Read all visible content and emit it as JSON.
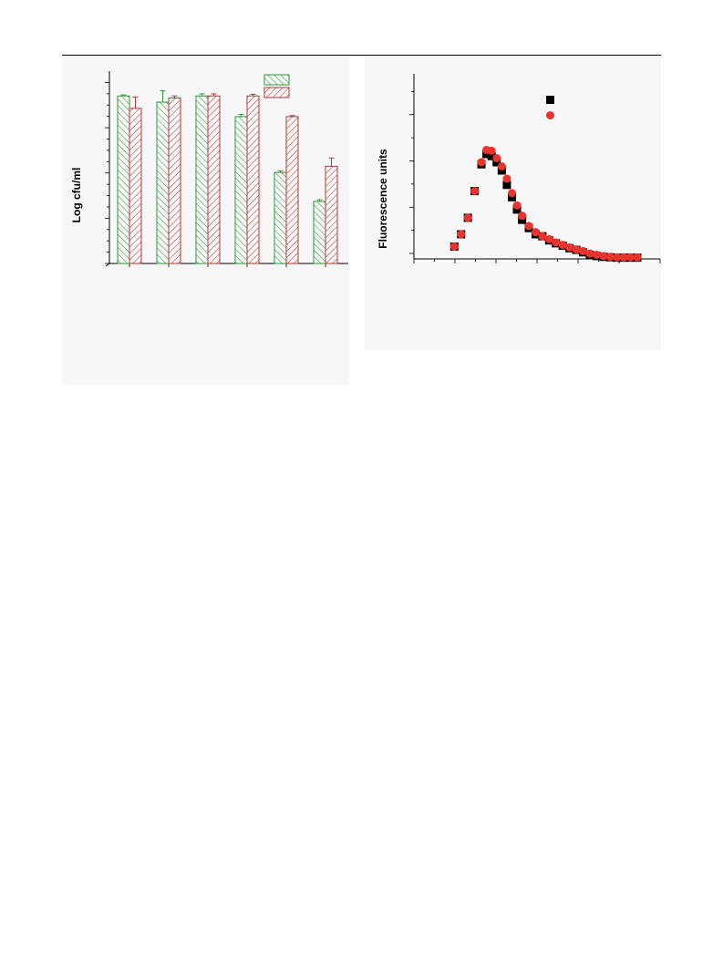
{
  "charts": {
    "left": {
      "ylabel": "Log cfu/ml"
    },
    "right": {
      "ylabel": "Fluorescence units"
    }
  },
  "chart_data": [
    {
      "type": "bar",
      "title": "",
      "xlabel": "",
      "ylabel": "Log cfu/ml",
      "ylim": [
        0,
        9.3
      ],
      "categories": [
        "",
        "",
        "",
        "",
        "",
        ""
      ],
      "series": [
        {
          "color": "#2e9a3a",
          "hatch": "backslash",
          "values": [
            8.1,
            7.8,
            8.1,
            7.1,
            4.4,
            3.0
          ],
          "errors": [
            0.05,
            0.55,
            0.1,
            0.1,
            0.08,
            0.08
          ]
        },
        {
          "color": "#b03a3a",
          "hatch": "slash",
          "values": [
            7.5,
            8.0,
            8.1,
            8.1,
            7.1,
            4.7
          ],
          "errors": [
            0.55,
            0.1,
            0.1,
            0.08,
            0.05,
            0.4
          ]
        }
      ],
      "grid": false,
      "legend": "top-right"
    },
    {
      "type": "scatter",
      "title": "",
      "xlabel": "",
      "ylabel": "Fluorescence units",
      "xlim": [
        0,
        60
      ],
      "ylim": [
        0,
        45
      ],
      "grid": false,
      "legend": "top-right",
      "series": [
        {
          "marker": "square",
          "color": "#000000",
          "x": [
            6,
            8,
            10,
            12,
            14,
            15.5,
            17,
            18.5,
            20,
            21.5,
            23,
            24.5,
            26,
            28,
            30,
            32,
            34,
            36,
            38,
            40,
            42,
            44,
            46,
            48,
            50,
            52,
            54,
            56,
            58,
            60
          ],
          "y": [
            3,
            6,
            10,
            16.5,
            23,
            25.5,
            25,
            23.5,
            21.5,
            18,
            15,
            12,
            9.5,
            7.5,
            6,
            5.5,
            4.5,
            3.8,
            3.2,
            2.6,
            2.2,
            1.6,
            1.0,
            0.7,
            0.5,
            0.4,
            0.3,
            0.3,
            0.3,
            0.3
          ]
        },
        {
          "marker": "circle",
          "color": "#e8342c",
          "x": [
            6,
            8,
            10,
            12,
            14,
            15.5,
            17,
            18.5,
            20,
            21.5,
            23,
            24.5,
            26,
            28,
            30,
            32,
            34,
            36,
            38,
            40,
            42,
            44,
            46,
            48,
            50,
            52,
            54,
            56,
            58,
            60
          ],
          "y": [
            3,
            6,
            10,
            16.5,
            23.5,
            26.5,
            26.3,
            24.5,
            22.5,
            19.5,
            16,
            13,
            10.5,
            8,
            6.5,
            5.5,
            4.8,
            4.0,
            3.4,
            2.8,
            2.3,
            1.9,
            1.3,
            1.0,
            0.7,
            0.5,
            0.4,
            0.4,
            0.4,
            0.4
          ]
        }
      ]
    }
  ]
}
